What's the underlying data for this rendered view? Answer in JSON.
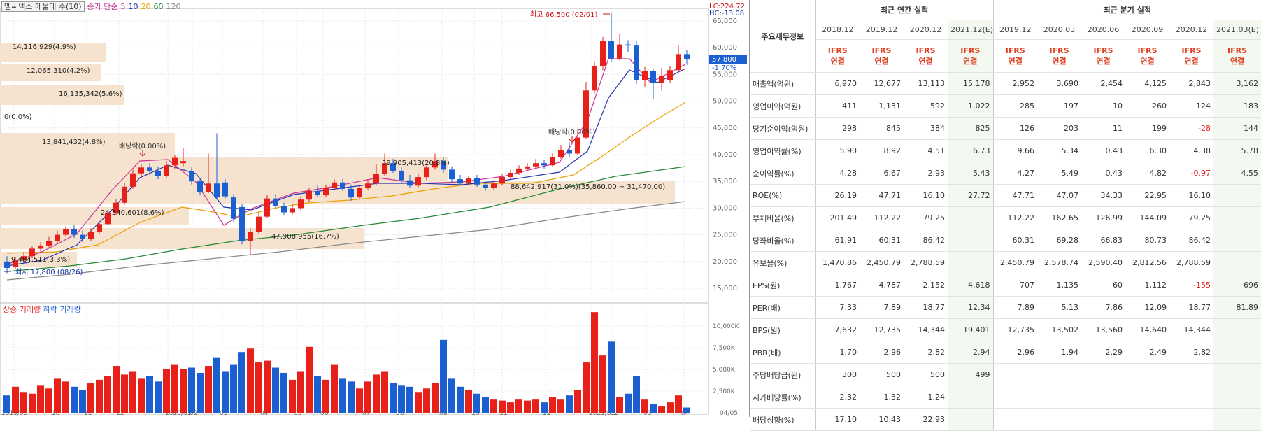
{
  "chart": {
    "title_items": [
      {
        "text": "엠씨넥스 메물대 수(10)",
        "color": "#333333"
      },
      {
        "text": "종가 단순",
        "color": "#cc3399"
      },
      {
        "text": "5",
        "color": "#cc3399"
      },
      {
        "text": "10",
        "color": "#2233aa"
      },
      {
        "text": "20",
        "color": "#e8a000"
      },
      {
        "text": "60",
        "color": "#228833"
      },
      {
        "text": "120",
        "color": "#888888"
      }
    ],
    "lc": "LC:224.72",
    "hc": "HC:-13.08",
    "price_label": "57,800",
    "price_change": "-1.70%",
    "high_annotation": "최고 66,500 (02/01)",
    "low_annotation": "최저 17,800 (08/26)",
    "dividend_labels": [
      "배당락(0.00%)",
      "배당락(0.00%)"
    ],
    "y_ticks": [
      "65,000",
      "60,000",
      "55,000",
      "50,000",
      "45,000",
      "40,000",
      "35,000",
      "30,000",
      "25,000",
      "20,000",
      "15,000"
    ],
    "x_ticks": [
      "2019/08",
      "10",
      "11",
      "12",
      "2020/01",
      "02",
      "03",
      "04",
      "05",
      "06",
      "07",
      "08",
      "09",
      "10",
      "11",
      "12",
      "2021/01",
      "02",
      "03",
      "04",
      "04/05"
    ],
    "vol_ticks": [
      "10,000K",
      "7,500K",
      "5,000K",
      "2,500K"
    ],
    "volume_title_up": "상승 거래량",
    "volume_title_down": "하락 거래량",
    "volume_profile": [
      {
        "label": "14,116,929(4.9%)"
      },
      {
        "label": "12,065,310(4.2%)"
      },
      {
        "label": "16,135,342(5.6%)"
      },
      {
        "label": "0(0.0%)"
      },
      {
        "label": "13,841,432(4.8%)"
      },
      {
        "label": "59,905,413(20.8%)"
      },
      {
        "label": "88,642,917(31.0%)(35,860.00 ~ 31,470.00)"
      },
      {
        "label": "24,540,601(8.6%)"
      },
      {
        "label": "47,908,955(16.7%)"
      },
      {
        "label": "9,484,511(3.3%)"
      }
    ],
    "colors": {
      "up": "#e8201a",
      "down": "#1c5fd0",
      "ma5": "#cc3399",
      "ma10": "#2233aa",
      "ma20": "#e8a000",
      "ma60": "#228833",
      "ma120": "#888888",
      "profile": "#f6e3cf"
    }
  },
  "table": {
    "row_header": "주요재무정보",
    "group_annual": "최근 연간 실적",
    "group_quarter": "최근 분기 실적",
    "periods": [
      "2018.12",
      "2019.12",
      "2020.12",
      "2021.12(E)",
      "2019.12",
      "2020.03",
      "2020.06",
      "2020.09",
      "2020.12",
      "2021.03(E)"
    ],
    "tag_line1": "IFRS",
    "tag_line2": "연결",
    "rows": [
      {
        "label": "매출액(억원)",
        "values": [
          "6,970",
          "12,677",
          "13,113",
          "15,178",
          "2,952",
          "3,690",
          "2,454",
          "4,125",
          "2,843",
          "3,162"
        ]
      },
      {
        "label": "영업이익(억원)",
        "values": [
          "411",
          "1,131",
          "592",
          "1,022",
          "285",
          "197",
          "10",
          "260",
          "124",
          "183"
        ]
      },
      {
        "label": "당기순이익(억원)",
        "values": [
          "298",
          "845",
          "384",
          "825",
          "126",
          "203",
          "11",
          "199",
          "-28",
          "144"
        ]
      },
      {
        "label": "영업이익률(%)",
        "values": [
          "5.90",
          "8.92",
          "4.51",
          "6.73",
          "9.66",
          "5.34",
          "0.43",
          "6.30",
          "4.38",
          "5.78"
        ]
      },
      {
        "label": "순이익률(%)",
        "values": [
          "4.28",
          "6.67",
          "2.93",
          "5.43",
          "4.27",
          "5.49",
          "0.43",
          "4.82",
          "-0.97",
          "4.55"
        ]
      },
      {
        "label": "ROE(%)",
        "values": [
          "26.19",
          "47.71",
          "16.10",
          "27.72",
          "47.71",
          "47.07",
          "34.33",
          "22.95",
          "16.10",
          ""
        ]
      },
      {
        "label": "부채비율(%)",
        "values": [
          "201.49",
          "112.22",
          "79.25",
          "",
          "112.22",
          "162.65",
          "126.99",
          "144.09",
          "79.25",
          ""
        ]
      },
      {
        "label": "당좌비율(%)",
        "values": [
          "61.91",
          "60.31",
          "86.42",
          "",
          "60.31",
          "69.28",
          "66.83",
          "80.73",
          "86.42",
          ""
        ]
      },
      {
        "label": "유보율(%)",
        "values": [
          "1,470.86",
          "2,450.79",
          "2,788.59",
          "",
          "2,450.79",
          "2,578.74",
          "2,590.40",
          "2,812.56",
          "2,788.59",
          ""
        ]
      },
      {
        "label": "EPS(원)",
        "values": [
          "1,767",
          "4,787",
          "2,152",
          "4,618",
          "707",
          "1,135",
          "60",
          "1,112",
          "-155",
          "696"
        ]
      },
      {
        "label": "PER(배)",
        "values": [
          "7.33",
          "7.89",
          "18.77",
          "12.34",
          "7.89",
          "5.13",
          "7.86",
          "12.09",
          "18.77",
          "81.89"
        ]
      },
      {
        "label": "BPS(원)",
        "values": [
          "7,632",
          "12,735",
          "14,344",
          "19,401",
          "12,735",
          "13,502",
          "13,560",
          "14,640",
          "14,344",
          ""
        ]
      },
      {
        "label": "PBR(배)",
        "values": [
          "1.70",
          "2.96",
          "2.82",
          "2.94",
          "2.96",
          "1.94",
          "2.29",
          "2.49",
          "2.82",
          ""
        ]
      },
      {
        "label": "주당배당금(원)",
        "values": [
          "300",
          "500",
          "500",
          "499",
          "",
          "",
          "",
          "",
          "",
          ""
        ]
      },
      {
        "label": "시가배당률(%)",
        "values": [
          "2.32",
          "1.32",
          "1.24",
          "",
          "",
          "",
          "",
          "",
          "",
          ""
        ]
      },
      {
        "label": "배당성향(%)",
        "values": [
          "17.10",
          "10.43",
          "22.93",
          "",
          "",
          "",
          "",
          "",
          "",
          ""
        ]
      }
    ]
  }
}
